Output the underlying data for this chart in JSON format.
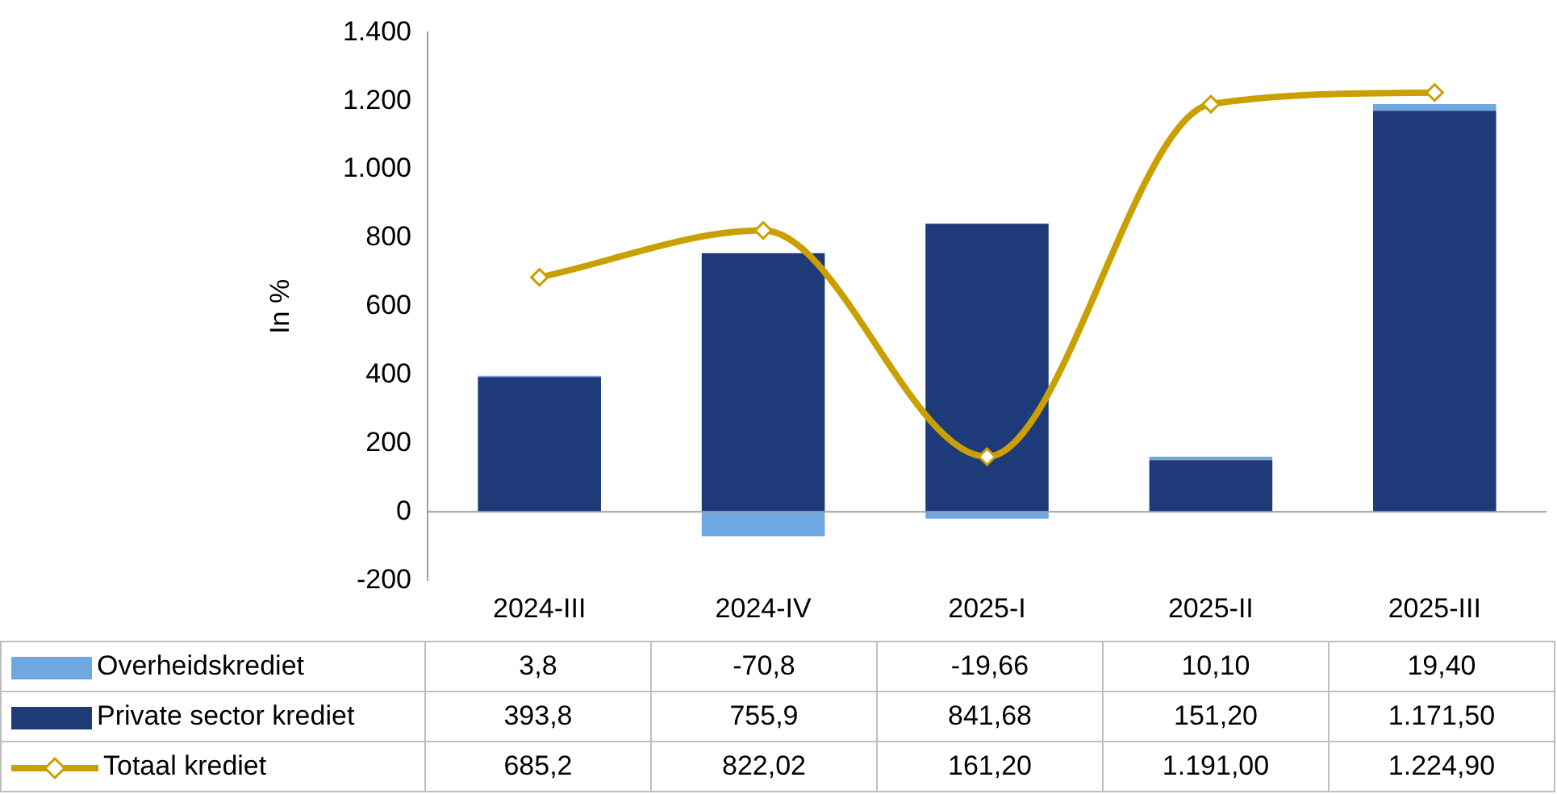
{
  "chart_data": {
    "type": "bar",
    "ylabel": "In %",
    "categories": [
      "2024-III",
      "2024-IV",
      "2025-I",
      "2025-II",
      "2025-III"
    ],
    "stacked": true,
    "series": [
      {
        "name": "Private sector krediet",
        "color": "#1f3a78",
        "values": [
          393.8,
          755.9,
          841.68,
          151.2,
          1171.5
        ],
        "value_labels": [
          "393,8",
          "755,9",
          "841,68",
          "151,20",
          "1.171,50"
        ]
      },
      {
        "name": "Overheidskrediet",
        "color": "#6fa8e0",
        "values": [
          3.8,
          -70.8,
          -19.66,
          10.1,
          19.4
        ],
        "value_labels": [
          "3,8",
          "-70,8",
          "-19,66",
          "10,10",
          "19,40"
        ]
      },
      {
        "name": "Totaal krediet",
        "type": "line",
        "color": "#c9a000",
        "marker": "diamond",
        "values": [
          685.2,
          822.02,
          161.2,
          1191,
          1224.9
        ],
        "value_labels": [
          "685,2",
          "822,02",
          "161,20",
          "1.191,00",
          "1.224,90"
        ]
      }
    ],
    "ylim": [
      -200,
      1400
    ],
    "yticks": [
      {
        "value": -200,
        "label": "-200"
      },
      0,
      200,
      400,
      600,
      800,
      {
        "value": 1000,
        "label": "1.000"
      },
      {
        "value": 1200,
        "label": "1.200"
      },
      {
        "value": 1400,
        "label": "1.400"
      }
    ],
    "ref_lines": [
      {
        "axis": "y",
        "value": 0,
        "color": "#a0a0a0"
      }
    ],
    "grid": false,
    "legend": "bottom"
  }
}
